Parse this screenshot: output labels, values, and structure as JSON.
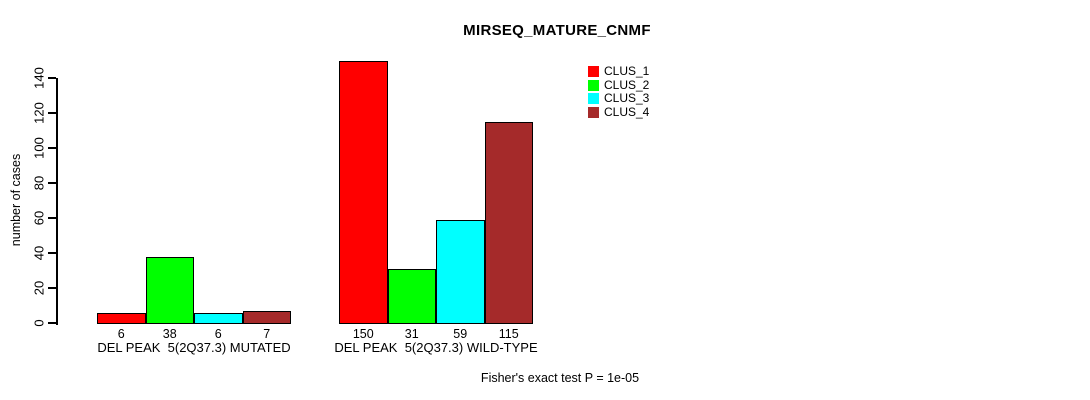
{
  "title": "MIRSEQ_MATURE_CNMF",
  "footnote": "Fisher's exact test P = 1e-05",
  "chart_data": {
    "type": "bar",
    "title": "MIRSEQ_MATURE_CNMF",
    "xlabel": "",
    "ylabel": "number of cases",
    "categories": [
      "DEL PEAK  5(2Q37.3) MUTATED",
      "DEL PEAK  5(2Q37.3) WILD-TYPE"
    ],
    "series": [
      {
        "name": "CLUS_1",
        "color": "#ff0000",
        "values": [
          6,
          150
        ]
      },
      {
        "name": "CLUS_2",
        "color": "#00ff00",
        "values": [
          38,
          31
        ]
      },
      {
        "name": "CLUS_3",
        "color": "#00ffff",
        "values": [
          6,
          59
        ]
      },
      {
        "name": "CLUS_4",
        "color": "#a52a2a",
        "values": [
          7,
          115
        ]
      }
    ],
    "bar_value_labels": [
      [
        6,
        38,
        6,
        7
      ],
      [
        150,
        31,
        59,
        115
      ]
    ],
    "y_ticks": [
      0,
      20,
      40,
      60,
      80,
      100,
      120,
      140
    ],
    "ylim": [
      0,
      150
    ],
    "grid": false,
    "legend_position": "top-right",
    "legend_entries": [
      "CLUS_1",
      "CLUS_2",
      "CLUS_3",
      "CLUS_4"
    ],
    "annotation": "Fisher's exact test P = 1e-05",
    "bar_border_color": "#000000",
    "axis_color": "#000000"
  }
}
